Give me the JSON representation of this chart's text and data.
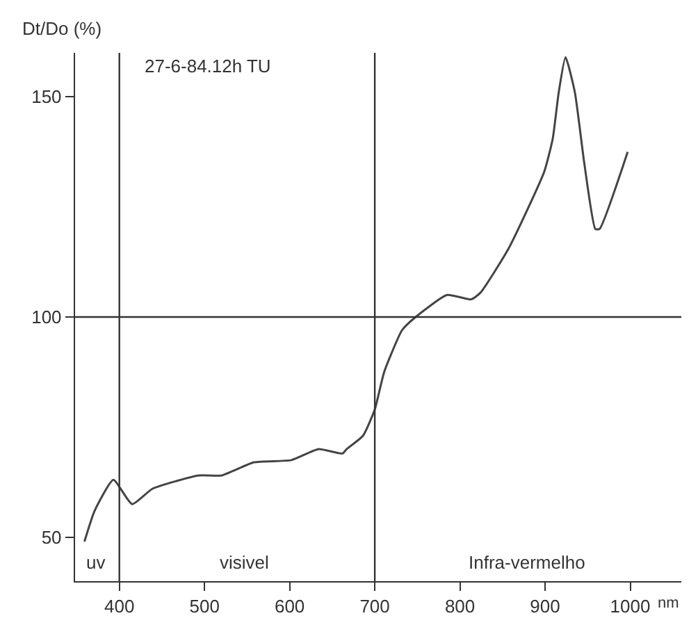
{
  "chart_data": {
    "type": "line",
    "xlabel": "nm",
    "ylabel": "Dt/Do (%)",
    "annotations": [
      "27-6-84.12h TU",
      "uv",
      "visivel",
      "Infra-vermelho"
    ],
    "x": [
      359,
      371,
      393,
      415,
      439,
      493,
      520,
      558,
      602,
      634,
      662,
      667,
      686,
      700,
      711,
      732,
      748,
      785,
      813,
      824,
      857,
      899,
      909,
      916,
      924,
      935,
      946,
      959,
      964,
      997
    ],
    "series": [
      {
        "color": "#444444",
        "values": [
          49,
          56,
          63,
          57.5,
          61,
          64,
          64,
          67,
          67.5,
          70,
          69,
          70,
          73,
          79,
          87.5,
          97,
          100,
          105,
          104,
          105.5,
          115.5,
          133,
          140.5,
          151,
          159,
          151,
          135,
          120,
          120,
          137.5
        ]
      }
    ],
    "xlim": [
      348,
      1060
    ],
    "ylim": [
      40,
      160
    ],
    "xticks": [
      400,
      500,
      600,
      700,
      800,
      900,
      1000
    ],
    "yticks": [
      50,
      100,
      150
    ],
    "ref_lines": [
      {
        "axis": "x",
        "value": 400,
        "color": "#333333"
      },
      {
        "axis": "x",
        "value": 700,
        "color": "#333333"
      },
      {
        "axis": "y",
        "value": 100,
        "color": "#333333"
      }
    ],
    "marker": "none",
    "line_style": "solid"
  }
}
